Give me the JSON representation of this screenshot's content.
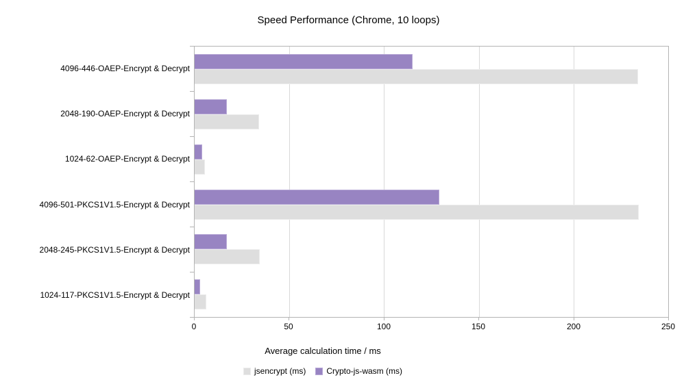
{
  "chart_data": {
    "type": "bar",
    "orientation": "horizontal",
    "title": "Speed Performance (Chrome, 10 loops)",
    "xlabel": "Average calculation time / ms",
    "ylabel": "",
    "xlim": [
      0,
      250
    ],
    "xticks": [
      0,
      50,
      100,
      150,
      200,
      250
    ],
    "grid": true,
    "legend_position": "bottom",
    "categories": [
      "4096-446-OAEP-Encrypt & Decrypt",
      "2048-190-OAEP-Encrypt & Decrypt",
      "1024-62-OAEP-Encrypt & Decrypt",
      "4096-501-PKCS1V1.5-Encrypt & Decrypt",
      "2048-245-PKCS1V1.5-Encrypt & Decrypt",
      "1024-117-PKCS1V1.5-Encrypt & Decrypt"
    ],
    "series": [
      {
        "name": "jsencrypt (ms)",
        "key": "jsencrypt",
        "color": "#dedede",
        "border_color": "#ececec",
        "values": [
          234,
          34,
          5.5,
          234.5,
          34.5,
          6
        ]
      },
      {
        "name": "Crypto-js-wasm (ms)",
        "key": "crypto-js-wasm",
        "color": "#9884c2",
        "border_color": "#b7a8d6",
        "values": [
          115,
          17,
          3.9,
          129,
          17,
          3
        ]
      }
    ],
    "axis_color": "#b3b3b3",
    "gridline_color": "#d9d9d9",
    "text_color": "#000000"
  }
}
